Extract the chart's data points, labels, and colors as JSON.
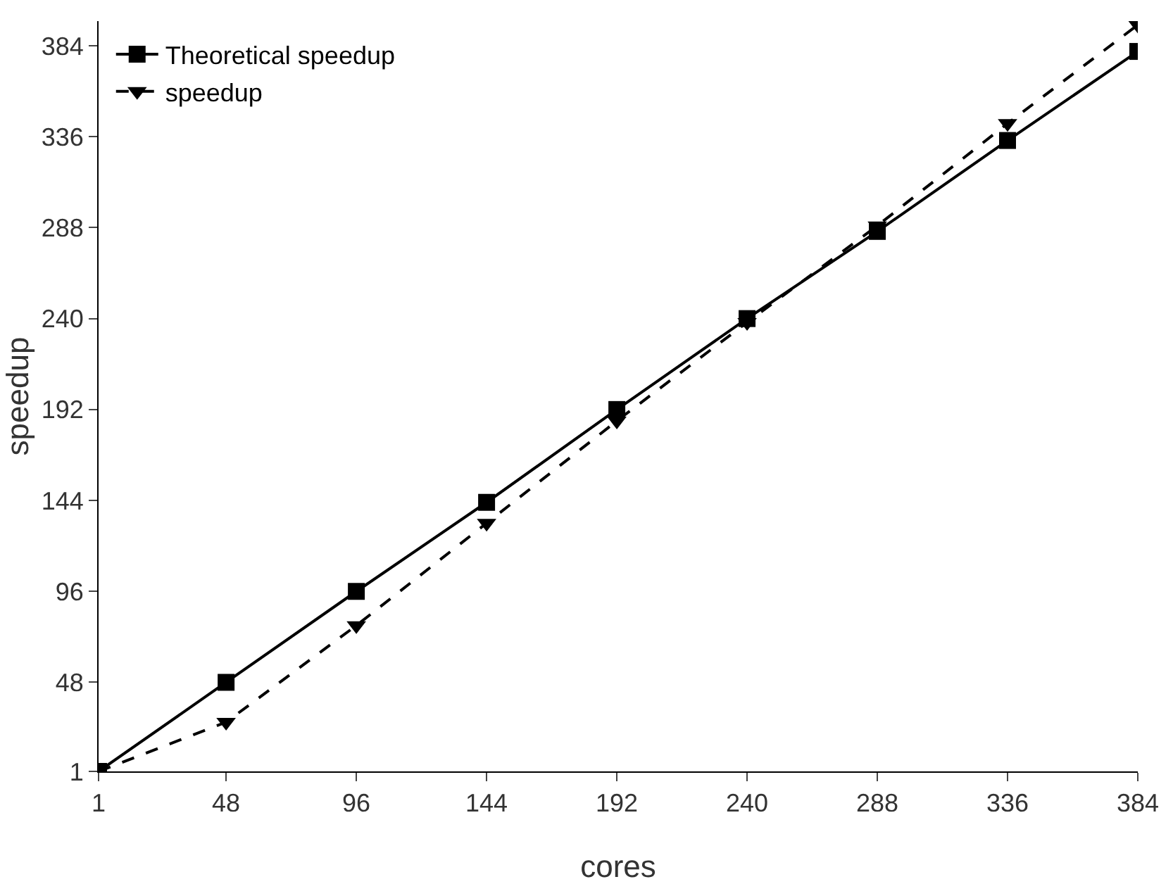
{
  "chart_data": {
    "type": "line",
    "xlabel": "cores",
    "ylabel": "speedup",
    "x": [
      1,
      48,
      96,
      144,
      192,
      240,
      288,
      336,
      384
    ],
    "series": [
      {
        "name": "Theoretical speedup",
        "color": "#000000",
        "marker": "square",
        "line_style": "solid",
        "values": [
          1,
          48,
          96,
          143,
          192,
          240,
          286,
          334,
          381
        ]
      },
      {
        "name": "speedup",
        "color": "#000000",
        "marker": "triangle",
        "line_style": "dashed",
        "values": [
          1,
          27,
          78,
          132,
          186,
          238,
          289,
          343,
          395
        ]
      }
    ],
    "xlim": [
      1,
      384
    ],
    "ylim": [
      1,
      397
    ],
    "xticks": [
      1,
      48,
      96,
      144,
      192,
      240,
      288,
      336,
      384
    ],
    "yticks": [
      1,
      48,
      96,
      144,
      192,
      240,
      288,
      336,
      384
    ],
    "grid": false,
    "legend": "top left"
  }
}
